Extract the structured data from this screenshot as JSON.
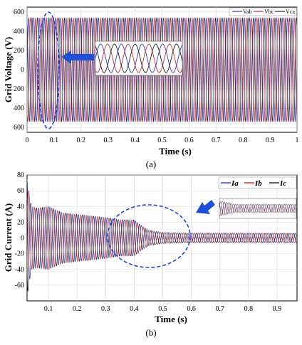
{
  "chart_data": [
    {
      "type": "line",
      "caption": "(a)",
      "ylabel": "Grid Voltage (V)",
      "xlabel": "Time (s)",
      "xlim": [
        0,
        1
      ],
      "ylim": [
        -650,
        650
      ],
      "x_ticks": [
        "0",
        "0.1",
        "0.2",
        "0.3",
        "0.4",
        "0.5",
        "0.6",
        "0.7",
        "0.8",
        "0.9",
        "1"
      ],
      "y_ticks": [
        "600",
        "400",
        "200",
        "0",
        "200",
        "400",
        "600"
      ],
      "y_tick_values": [
        600,
        400,
        200,
        0,
        -200,
        -400,
        -600
      ],
      "series": [
        {
          "name": "Vab",
          "color": "#2b3cc8",
          "amplitude": 540,
          "phase_deg": 0
        },
        {
          "name": "Vbc",
          "color": "#d62728",
          "amplitude": 540,
          "phase_deg": -120
        },
        {
          "name": "Vca",
          "color": "#222222",
          "amplitude": 540,
          "phase_deg": 120
        }
      ],
      "frequency_hz": 50,
      "legend_position": "top-right",
      "inset": "zoomed three-phase voltage waveforms",
      "highlight": "dashed ellipse near t = 0.08 s"
    },
    {
      "type": "line",
      "caption": "(b)",
      "ylabel": "Grid Current  (A)",
      "xlabel": "Time (s)",
      "xlim": [
        0.025,
        0.97
      ],
      "ylim": [
        -80,
        80
      ],
      "x_ticks": [
        "0.1",
        "0.2",
        "0.3",
        "0.4",
        "0.5",
        "0.6",
        "0.7",
        "0.8",
        "0.9"
      ],
      "x_tick_values": [
        0.1,
        0.2,
        0.3,
        0.4,
        0.5,
        0.6,
        0.7,
        0.8,
        0.9
      ],
      "y_ticks": [
        "80",
        "60",
        "40",
        "20",
        "0",
        "-20",
        "-40",
        "-60"
      ],
      "y_tick_values": [
        80,
        60,
        40,
        20,
        0,
        -20,
        -40,
        -60
      ],
      "series": [
        {
          "name": "Ia",
          "color": "#2b3cc8",
          "phase_deg": 0
        },
        {
          "name": "Ib",
          "color": "#d62728",
          "phase_deg": -120
        },
        {
          "name": "Ic",
          "color": "#222222",
          "phase_deg": 120
        }
      ],
      "envelope": {
        "t": [
          0.025,
          0.04,
          0.06,
          0.1,
          0.15,
          0.2,
          0.3,
          0.35,
          0.4,
          0.42,
          0.45,
          0.5,
          0.6,
          0.7,
          0.97
        ],
        "amplitude": [
          75,
          40,
          38,
          40,
          32,
          30,
          26,
          23,
          23,
          17,
          10,
          7,
          6,
          6,
          6
        ]
      },
      "frequency_hz": 50,
      "legend_position": "top-right",
      "inset": "zoomed current waveform",
      "highlight": "dashed ellipse around t = 0.45 s transient"
    }
  ]
}
